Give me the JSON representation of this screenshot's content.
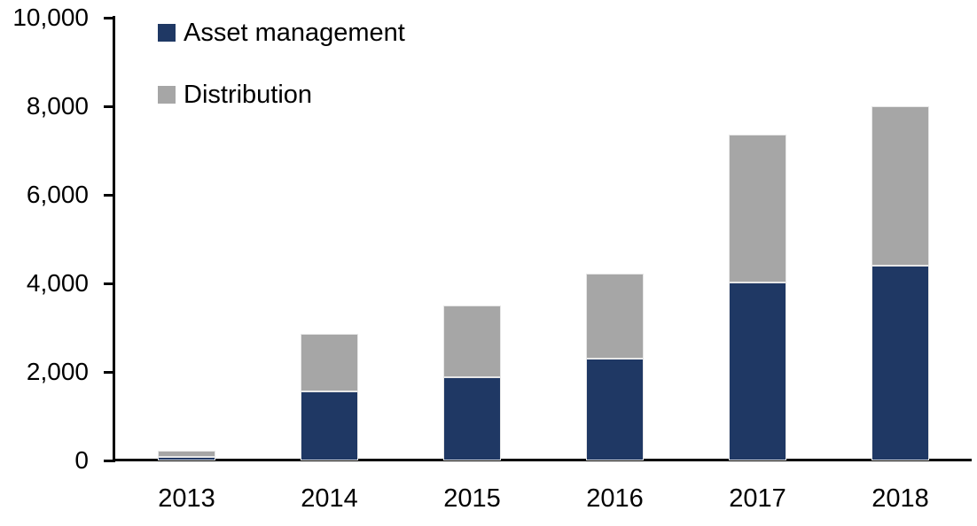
{
  "chart_data": {
    "type": "bar",
    "stacked": true,
    "title": "",
    "xlabel": "",
    "ylabel": "",
    "categories": [
      "2013",
      "2014",
      "2015",
      "2016",
      "2017",
      "2018"
    ],
    "series": [
      {
        "name": "Asset management",
        "color": "#1F3864",
        "values": [
          90,
          1560,
          1880,
          2300,
          4030,
          4400
        ]
      },
      {
        "name": "Distribution",
        "color": "#A6A6A6",
        "values": [
          130,
          1310,
          1620,
          1930,
          3340,
          3600
        ]
      }
    ],
    "totals": [
      220,
      2870,
      3500,
      4230,
      7370,
      8000
    ],
    "ylim": [
      0,
      10000
    ],
    "ytick_interval": 2000,
    "y_ticks": [
      {
        "value": 0,
        "label": "0"
      },
      {
        "value": 2000,
        "label": "2,000"
      },
      {
        "value": 4000,
        "label": "4,000"
      },
      {
        "value": 6000,
        "label": "6,000"
      },
      {
        "value": 8000,
        "label": "8,000"
      },
      {
        "value": 10000,
        "label": "10,000"
      }
    ],
    "grid": false,
    "legend_position": "top-left",
    "axis_color": "#000000",
    "background_color": "#FFFFFF"
  }
}
